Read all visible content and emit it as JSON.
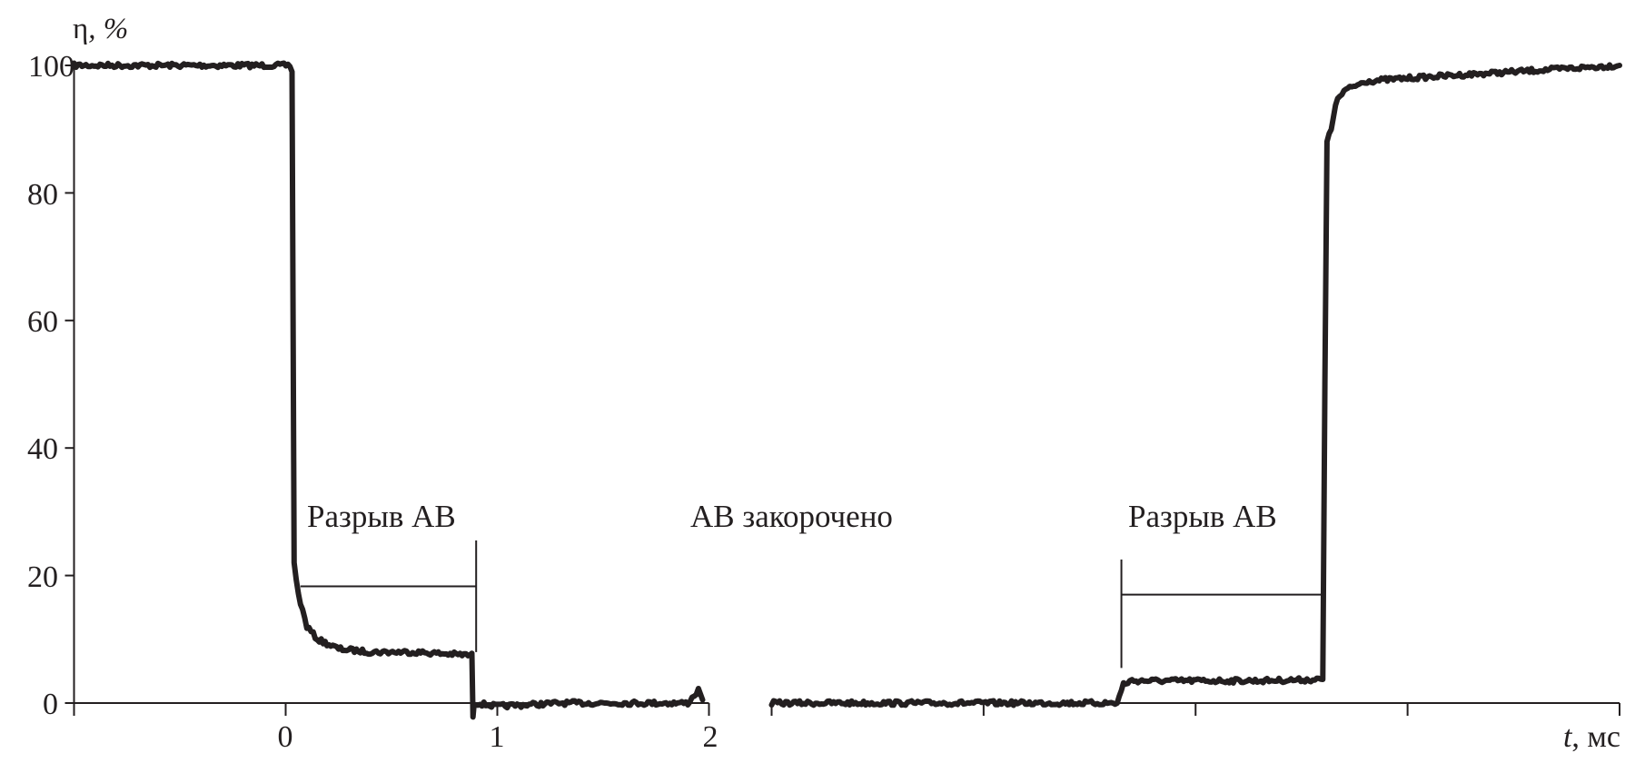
{
  "chart_data": {
    "type": "line",
    "ylabel_symbol": "η",
    "ylabel_unit": ", %",
    "xlabel_symbol": "t",
    "xlabel_unit": ", мс",
    "ylim": [
      0,
      100
    ],
    "yticks": [
      "0",
      "20",
      "40",
      "60",
      "80",
      "100"
    ],
    "line_color": "#231f20",
    "broken_x_axis": true,
    "segments": [
      {
        "xlim": [
          -1,
          2
        ],
        "xticks": [
          -1,
          0,
          1,
          2
        ],
        "xtick_labels": [
          "",
          "0",
          "1",
          "2"
        ],
        "series": {
          "x": [
            -1,
            0.02,
            0.03,
            0.04,
            0.06,
            0.1,
            0.15,
            0.25,
            0.4,
            0.6,
            0.88,
            0.885,
            0.89,
            0.9,
            1.0,
            1.3,
            1.6,
            1.9,
            1.95,
            1.97
          ],
          "y": [
            100,
            100,
            99,
            22,
            17,
            12,
            10,
            8.5,
            8,
            8,
            7.5,
            -2,
            0,
            0,
            -0.5,
            0,
            0,
            0,
            2,
            0.5
          ]
        }
      },
      {
        "xlim": [
          0,
          4
        ],
        "xticks": [
          0,
          1,
          2,
          3,
          4
        ],
        "xtick_labels": [
          "",
          "",
          "",
          "",
          ""
        ],
        "series": {
          "x": [
            0,
            0.5,
            1.0,
            1.63,
            1.66,
            1.7,
            2.0,
            2.3,
            2.6,
            2.61,
            2.62,
            2.64,
            2.66,
            2.7,
            2.8,
            3.0,
            3.5,
            4.0
          ],
          "y": [
            0,
            0,
            0,
            0,
            3,
            3.5,
            3.5,
            3.5,
            3.7,
            50,
            88,
            90,
            94,
            96,
            97.5,
            98,
            99,
            100
          ]
        }
      }
    ],
    "annotations": [
      {
        "text": "Разрыв АВ",
        "segment": 0,
        "bracket_x": [
          0.07,
          0.9
        ],
        "bracket_y": 18.3,
        "tick_y": [
          25.5,
          8
        ]
      },
      {
        "text": "АВ закорочено"
      },
      {
        "text": "Разрыв АВ",
        "segment": 1,
        "bracket_x": [
          1.65,
          2.6
        ],
        "bracket_y": 17,
        "tick_y": [
          22.5,
          5.5
        ]
      }
    ]
  }
}
